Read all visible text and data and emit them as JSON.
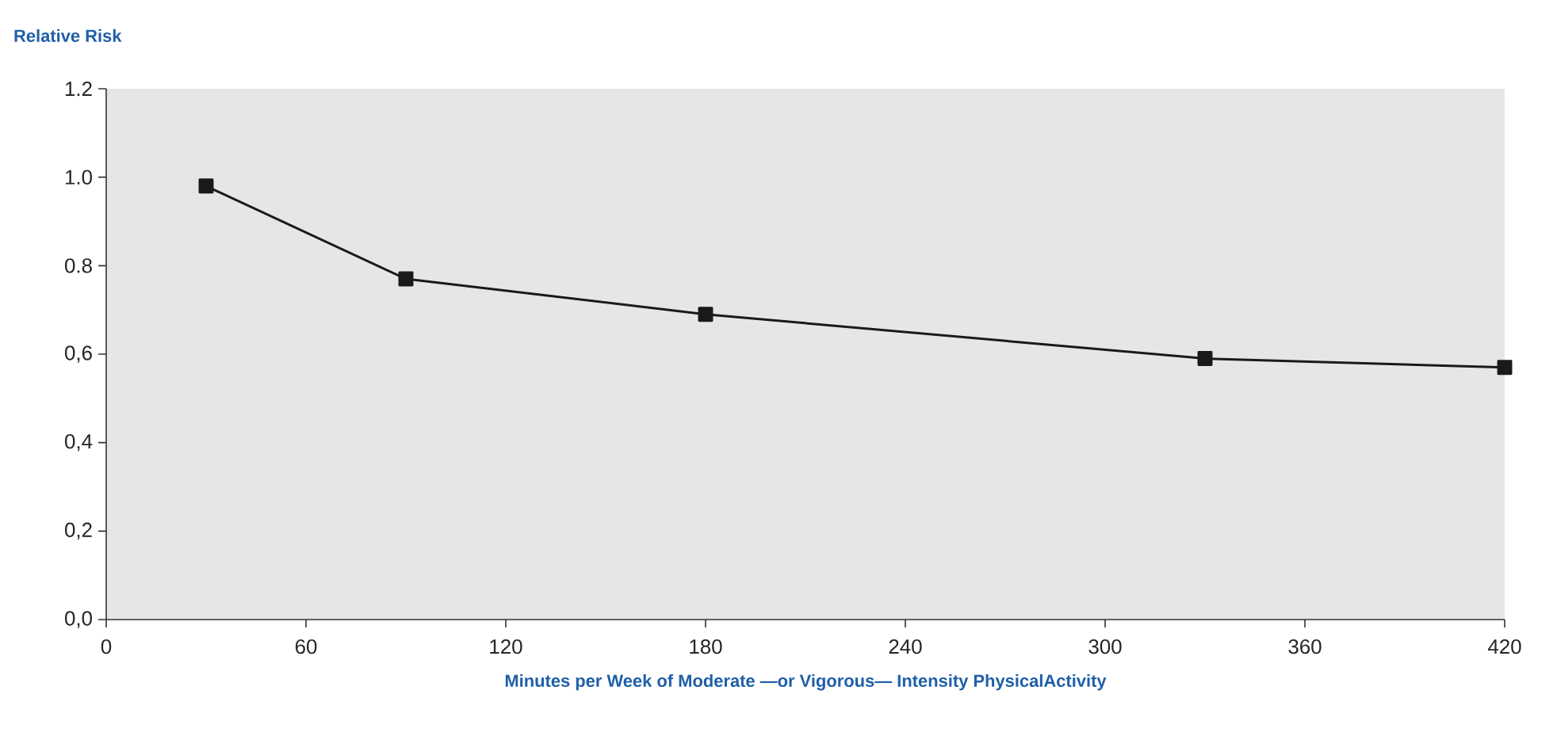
{
  "chart_data": {
    "type": "line",
    "ylabel": "Relative Risk",
    "xlabel": "Minutes per Week of Moderate —or Vigorous— Intensity PhysicalActivity",
    "x": [
      30,
      90,
      180,
      330,
      420
    ],
    "series": [
      {
        "color": "#1a1a1a",
        "values": [
          0.98,
          0.77,
          0.69,
          0.59,
          0.57
        ]
      }
    ],
    "xlim": [
      0,
      420
    ],
    "xticks": [
      0,
      60,
      120,
      180,
      240,
      300,
      360,
      420
    ],
    "ylim": [
      0,
      1.2
    ],
    "yticks": [
      {
        "value": 0,
        "label": "0,0"
      },
      {
        "value": 0.2,
        "label": "0,2"
      },
      {
        "value": 0.4,
        "label": "0,4"
      },
      {
        "value": 0.6,
        "label": "0,6"
      },
      {
        "value": 0.8,
        "label": "0.8"
      },
      {
        "value": 1.0,
        "label": "1.0"
      },
      {
        "value": 1.2,
        "label": "1.2"
      }
    ],
    "marker": "square",
    "line_style": "solid"
  }
}
